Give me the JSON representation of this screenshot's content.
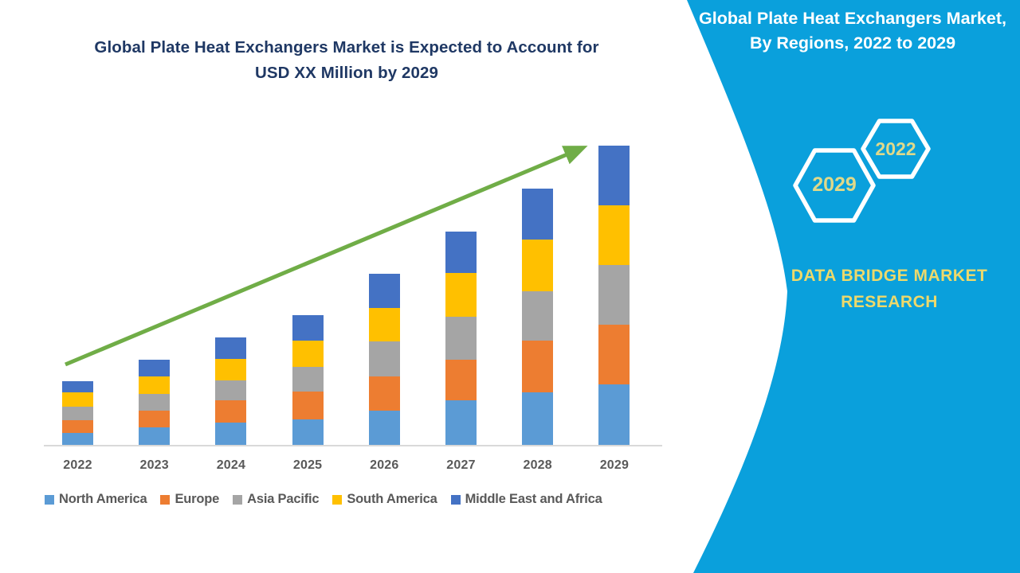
{
  "page": {
    "background": "#FFFFFF"
  },
  "left_chart": {
    "title_line1": "Global Plate Heat Exchangers Market is Expected to Account for",
    "title_line2": "USD XX Million by 2029",
    "title_color": "#1F3864"
  },
  "chart_data": {
    "type": "bar",
    "stacked": true,
    "title": "Global Plate Heat Exchangers Market is Expected to Account for USD XX Million by 2029",
    "categories": [
      "2022",
      "2023",
      "2024",
      "2025",
      "2026",
      "2027",
      "2028",
      "2029"
    ],
    "series": [
      {
        "name": "North America",
        "color": "#5B9BD5",
        "values": [
          15,
          22,
          28,
          32,
          43,
          56,
          66,
          76
        ]
      },
      {
        "name": "Europe",
        "color": "#ED7D31",
        "values": [
          16,
          21,
          28,
          35,
          43,
          51,
          65,
          75
        ]
      },
      {
        "name": "Asia Pacific",
        "color": "#A5A5A5",
        "values": [
          17,
          21,
          25,
          31,
          44,
          54,
          62,
          75
        ]
      },
      {
        "name": "South America",
        "color": "#FFC000",
        "values": [
          18,
          22,
          27,
          33,
          42,
          55,
          65,
          75
        ]
      },
      {
        "name": "Middle East and Africa",
        "color": "#4472C4",
        "values": [
          14,
          21,
          27,
          32,
          43,
          52,
          64,
          75
        ]
      }
    ],
    "totals": [
      80,
      107,
      135,
      163,
      215,
      268,
      322,
      376
    ],
    "ylabel": "",
    "xlabel": "",
    "y_axis": "hidden (values masked as USD XX Million, units estimated relative)",
    "grid": false,
    "legend_position": "bottom",
    "trend_arrow": {
      "color": "#70AD47",
      "direction": "up",
      "from_category": "2022",
      "to_category": "2029"
    },
    "axis_text_color": "#595959",
    "axis_line_color": "#D9D9D9"
  },
  "right_panel": {
    "background": "#0AA0DC",
    "title_line1": "Global Plate Heat Exchangers Market,",
    "title_line2": "By Regions, 2022 to 2029",
    "title_color": "#FFFFFF",
    "hexagons": [
      {
        "label": "2022"
      },
      {
        "label": "2029"
      }
    ],
    "hexagon_outline_color": "#FFFFFF",
    "hexagon_label_color": "#DFD98A",
    "brand_line1": "DATA BRIDGE MARKET",
    "brand_line2": "RESEARCH",
    "brand_text_color": "#EDD96B"
  }
}
